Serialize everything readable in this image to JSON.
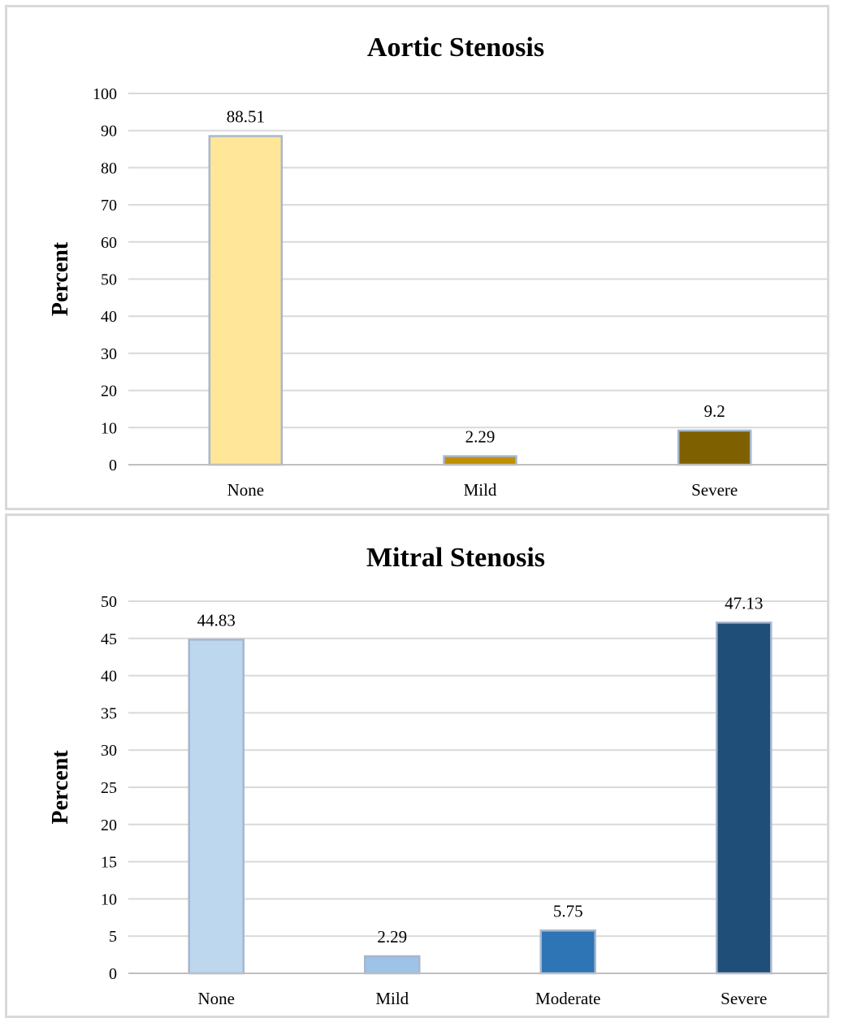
{
  "chart_data": [
    {
      "type": "bar",
      "title": "Aortic Stenosis",
      "ylabel": "Percent",
      "xlabel": "",
      "ylim": [
        0,
        100
      ],
      "yticks": [
        0,
        10,
        20,
        30,
        40,
        50,
        60,
        70,
        80,
        90,
        100
      ],
      "categories": [
        "None",
        "Mild",
        "Severe"
      ],
      "values": [
        88.51,
        2.29,
        9.2
      ],
      "data_labels": [
        "88.51",
        "2.29",
        "9.2"
      ],
      "colors": [
        "#ffe699",
        "#bf9000",
        "#7f6000"
      ],
      "grid": true,
      "legend": "none"
    },
    {
      "type": "bar",
      "title": "Mitral Stenosis",
      "ylabel": "Percent",
      "xlabel": "",
      "ylim": [
        0,
        50
      ],
      "yticks": [
        0,
        5,
        10,
        15,
        20,
        25,
        30,
        35,
        40,
        45,
        50
      ],
      "categories": [
        "None",
        "Mild",
        "Moderate",
        "Severe"
      ],
      "values": [
        44.83,
        2.29,
        5.75,
        47.13
      ],
      "data_labels": [
        "44.83",
        "2.29",
        "5.75",
        "47.13"
      ],
      "colors": [
        "#bdd7ee",
        "#9dc3e6",
        "#2e75b6",
        "#1f4e79"
      ],
      "grid": true,
      "legend": "none"
    }
  ]
}
